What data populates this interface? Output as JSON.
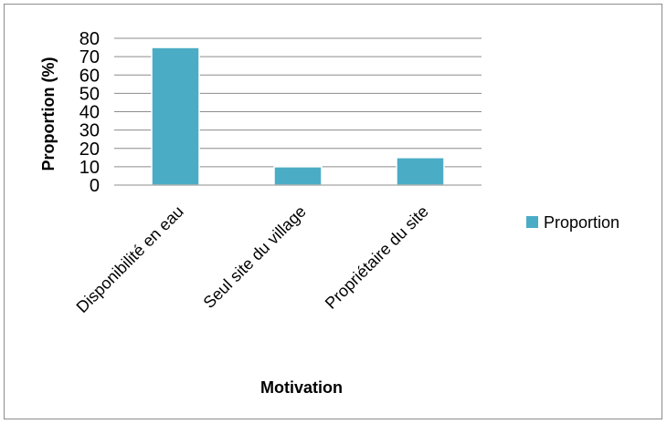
{
  "chart_data": {
    "type": "bar",
    "title": "",
    "xlabel": "Motivation",
    "ylabel": "Proportion (%)",
    "categories": [
      "Disponibilité en eau",
      "Seul site du village",
      "Propriétaire du site"
    ],
    "series": [
      {
        "name": "Proportion",
        "values": [
          75,
          10,
          15
        ],
        "color": "#4bacc6"
      }
    ],
    "ylim": [
      0,
      80
    ],
    "yticks": [
      "0",
      "10",
      "20",
      "30",
      "40",
      "50",
      "60",
      "70",
      "80"
    ],
    "grid": true,
    "legend": "right"
  }
}
